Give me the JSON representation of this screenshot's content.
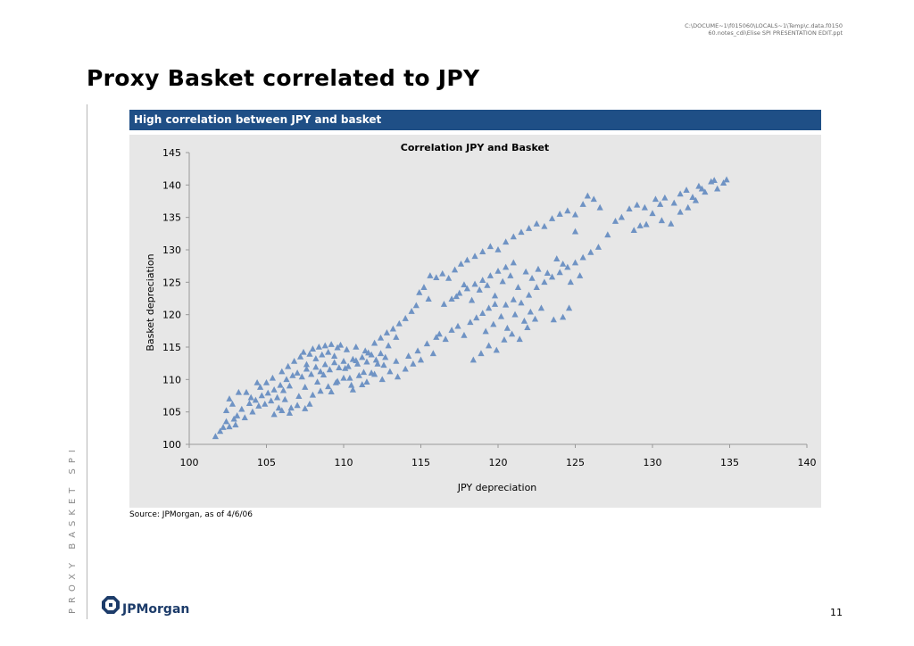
{
  "header": {
    "path_line1": "C:\\DOCUME~1\\f015060\\LOCALS~1\\Temp\\c.data.f0150",
    "path_line2": "60.notes_cdi\\Elise SPI PRESENTATION EDIT.ppt"
  },
  "page": {
    "title": "Proxy Basket correlated to JPY",
    "side_label": "PROXY BASKET SPI",
    "banner": "High correlation between JPY and basket",
    "source": "Source: JPMorgan, as of 4/6/06",
    "logo_text": "JPMorgan",
    "page_number": "11"
  },
  "colors": {
    "banner": "#1f4f86",
    "panel_bg": "#e7e7e7",
    "marker": "#6f93c4"
  },
  "chart_data": {
    "type": "scatter",
    "title": "Correlation JPY and Basket",
    "xlabel": "JPY depreciation",
    "ylabel": "Basket depreciation",
    "xlim": [
      100,
      140
    ],
    "ylim": [
      100,
      145
    ],
    "xticks": [
      100,
      105,
      110,
      115,
      120,
      125,
      130,
      135,
      140
    ],
    "yticks": [
      100,
      105,
      110,
      115,
      120,
      125,
      130,
      135,
      140,
      145
    ],
    "grid": false,
    "legend": "none",
    "marker": "triangle",
    "series": [
      {
        "points": [
          [
            101.7,
            101.2
          ],
          [
            102.0,
            102.0
          ],
          [
            102.2,
            102.6
          ],
          [
            102.4,
            103.5
          ],
          [
            102.6,
            102.7
          ],
          [
            102.9,
            103.9
          ],
          [
            103.1,
            104.4
          ],
          [
            103.0,
            103.0
          ],
          [
            103.4,
            105.4
          ],
          [
            103.6,
            104.1
          ],
          [
            102.4,
            105.2
          ],
          [
            102.8,
            106.2
          ],
          [
            102.6,
            107.0
          ],
          [
            103.2,
            108.0
          ],
          [
            103.7,
            108.0
          ],
          [
            103.9,
            106.3
          ],
          [
            104.1,
            105.0
          ],
          [
            104.3,
            106.8
          ],
          [
            104.5,
            105.9
          ],
          [
            104.7,
            107.5
          ],
          [
            104.9,
            106.2
          ],
          [
            105.1,
            107.9
          ],
          [
            105.3,
            106.7
          ],
          [
            105.5,
            108.4
          ],
          [
            105.7,
            107.2
          ],
          [
            105.9,
            109.1
          ],
          [
            106.1,
            108.3
          ],
          [
            106.3,
            110.0
          ],
          [
            106.5,
            109.0
          ],
          [
            106.7,
            110.6
          ],
          [
            104.6,
            108.8
          ],
          [
            105.0,
            109.5
          ],
          [
            105.4,
            110.2
          ],
          [
            106.0,
            111.2
          ],
          [
            106.4,
            112.0
          ],
          [
            106.8,
            112.8
          ],
          [
            107.2,
            113.5
          ],
          [
            107.4,
            114.2
          ],
          [
            107.6,
            112.3
          ],
          [
            107.8,
            113.9
          ],
          [
            108.0,
            114.7
          ],
          [
            108.2,
            113.2
          ],
          [
            108.4,
            115.0
          ],
          [
            108.6,
            113.8
          ],
          [
            108.8,
            115.2
          ],
          [
            109.0,
            114.2
          ],
          [
            109.2,
            115.4
          ],
          [
            109.4,
            113.6
          ],
          [
            109.6,
            114.9
          ],
          [
            109.8,
            115.3
          ],
          [
            107.0,
            111.0
          ],
          [
            107.3,
            110.4
          ],
          [
            107.6,
            111.6
          ],
          [
            107.9,
            110.8
          ],
          [
            108.2,
            111.9
          ],
          [
            108.5,
            111.2
          ],
          [
            108.8,
            112.3
          ],
          [
            109.1,
            111.5
          ],
          [
            109.4,
            112.6
          ],
          [
            109.7,
            111.8
          ],
          [
            110.0,
            112.8
          ],
          [
            110.3,
            112.0
          ],
          [
            110.6,
            113.1
          ],
          [
            110.9,
            112.4
          ],
          [
            111.2,
            113.4
          ],
          [
            111.5,
            112.7
          ],
          [
            111.8,
            113.8
          ],
          [
            112.1,
            113.0
          ],
          [
            112.4,
            114.0
          ],
          [
            112.7,
            113.4
          ],
          [
            105.5,
            104.6
          ],
          [
            106.0,
            105.2
          ],
          [
            106.5,
            104.8
          ],
          [
            107.0,
            106.0
          ],
          [
            107.5,
            105.5
          ],
          [
            108.0,
            107.6
          ],
          [
            108.5,
            108.2
          ],
          [
            109.0,
            108.9
          ],
          [
            109.5,
            109.5
          ],
          [
            110.0,
            110.2
          ],
          [
            110.5,
            109.1
          ],
          [
            111.0,
            110.6
          ],
          [
            111.5,
            109.6
          ],
          [
            112.0,
            110.8
          ],
          [
            112.5,
            110.0
          ],
          [
            113.0,
            111.2
          ],
          [
            113.5,
            110.4
          ],
          [
            114.0,
            111.6
          ],
          [
            114.5,
            112.4
          ],
          [
            115.0,
            113.0
          ],
          [
            110.2,
            114.6
          ],
          [
            110.8,
            115.0
          ],
          [
            111.4,
            114.4
          ],
          [
            112.0,
            115.6
          ],
          [
            112.4,
            116.4
          ],
          [
            112.8,
            117.2
          ],
          [
            113.2,
            117.8
          ],
          [
            113.6,
            118.6
          ],
          [
            114.0,
            119.4
          ],
          [
            114.4,
            120.5
          ],
          [
            114.7,
            121.4
          ],
          [
            114.9,
            123.4
          ],
          [
            115.2,
            124.2
          ],
          [
            115.5,
            122.4
          ],
          [
            115.6,
            126.0
          ],
          [
            116.0,
            125.7
          ],
          [
            116.4,
            126.3
          ],
          [
            116.8,
            125.6
          ],
          [
            117.2,
            126.9
          ],
          [
            117.6,
            127.8
          ],
          [
            116.2,
            117.0
          ],
          [
            116.6,
            116.2
          ],
          [
            117.0,
            117.6
          ],
          [
            117.4,
            118.2
          ],
          [
            117.8,
            116.8
          ],
          [
            118.2,
            118.8
          ],
          [
            118.6,
            119.5
          ],
          [
            119.0,
            120.2
          ],
          [
            119.4,
            121.0
          ],
          [
            119.8,
            121.6
          ],
          [
            116.5,
            121.6
          ],
          [
            117.0,
            122.4
          ],
          [
            117.5,
            123.3
          ],
          [
            118.0,
            124.0
          ],
          [
            118.5,
            124.7
          ],
          [
            119.0,
            125.3
          ],
          [
            119.5,
            126.0
          ],
          [
            120.0,
            126.7
          ],
          [
            120.5,
            127.3
          ],
          [
            121.0,
            128.0
          ],
          [
            117.3,
            122.8
          ],
          [
            117.8,
            124.6
          ],
          [
            118.3,
            122.2
          ],
          [
            118.8,
            123.8
          ],
          [
            119.3,
            124.5
          ],
          [
            119.8,
            122.9
          ],
          [
            120.3,
            125.1
          ],
          [
            120.8,
            126.0
          ],
          [
            121.3,
            124.2
          ],
          [
            121.8,
            126.6
          ],
          [
            118.0,
            128.4
          ],
          [
            118.5,
            129.0
          ],
          [
            119.0,
            129.7
          ],
          [
            119.5,
            130.5
          ],
          [
            120.0,
            130.0
          ],
          [
            120.5,
            131.2
          ],
          [
            121.0,
            132.0
          ],
          [
            121.5,
            132.7
          ],
          [
            122.0,
            133.3
          ],
          [
            122.5,
            134.0
          ],
          [
            123.0,
            133.6
          ],
          [
            123.5,
            134.8
          ],
          [
            124.0,
            135.5
          ],
          [
            124.5,
            136.0
          ],
          [
            125.0,
            135.4
          ],
          [
            125.5,
            137.0
          ],
          [
            125.8,
            138.3
          ],
          [
            126.2,
            137.8
          ],
          [
            126.6,
            136.5
          ],
          [
            125.0,
            132.8
          ],
          [
            120.5,
            121.5
          ],
          [
            121.0,
            122.3
          ],
          [
            121.5,
            121.8
          ],
          [
            122.0,
            123.0
          ],
          [
            122.5,
            124.2
          ],
          [
            123.0,
            125.0
          ],
          [
            123.5,
            125.8
          ],
          [
            124.0,
            126.5
          ],
          [
            124.5,
            127.3
          ],
          [
            125.0,
            128.0
          ],
          [
            125.5,
            128.8
          ],
          [
            126.0,
            129.6
          ],
          [
            126.5,
            130.4
          ],
          [
            125.3,
            126.0
          ],
          [
            124.7,
            125.0
          ],
          [
            124.2,
            127.8
          ],
          [
            123.8,
            128.6
          ],
          [
            123.2,
            126.4
          ],
          [
            122.6,
            127.0
          ],
          [
            122.2,
            125.6
          ],
          [
            118.4,
            113.0
          ],
          [
            118.9,
            114.0
          ],
          [
            119.4,
            115.2
          ],
          [
            119.9,
            114.5
          ],
          [
            120.4,
            116.1
          ],
          [
            120.9,
            117.0
          ],
          [
            121.4,
            116.2
          ],
          [
            121.9,
            118.0
          ],
          [
            122.4,
            119.3
          ],
          [
            122.8,
            121.0
          ],
          [
            123.6,
            119.2
          ],
          [
            124.2,
            119.6
          ],
          [
            124.6,
            121.0
          ],
          [
            119.2,
            117.4
          ],
          [
            119.7,
            118.5
          ],
          [
            120.2,
            119.7
          ],
          [
            120.6,
            117.9
          ],
          [
            121.1,
            120.0
          ],
          [
            121.7,
            119.0
          ],
          [
            122.1,
            120.4
          ],
          [
            127.1,
            132.3
          ],
          [
            127.6,
            134.4
          ],
          [
            128.0,
            135.0
          ],
          [
            128.5,
            136.3
          ],
          [
            129.0,
            136.9
          ],
          [
            129.5,
            136.5
          ],
          [
            130.0,
            135.6
          ],
          [
            130.5,
            137.0
          ],
          [
            128.8,
            133.0
          ],
          [
            129.2,
            133.7
          ],
          [
            130.2,
            137.8
          ],
          [
            130.8,
            138.0
          ],
          [
            131.4,
            137.2
          ],
          [
            131.8,
            138.6
          ],
          [
            132.2,
            139.2
          ],
          [
            132.6,
            138.1
          ],
          [
            133.0,
            139.8
          ],
          [
            133.4,
            138.9
          ],
          [
            133.8,
            140.5
          ],
          [
            134.2,
            139.4
          ],
          [
            134.6,
            140.3
          ],
          [
            134.8,
            140.8
          ],
          [
            134.0,
            140.7
          ],
          [
            133.2,
            139.4
          ],
          [
            132.3,
            136.5
          ],
          [
            132.8,
            137.6
          ],
          [
            131.2,
            134.0
          ],
          [
            131.8,
            135.8
          ],
          [
            130.6,
            134.5
          ],
          [
            129.6,
            133.9
          ],
          [
            110.6,
            108.4
          ],
          [
            111.2,
            109.2
          ],
          [
            111.8,
            111.0
          ],
          [
            112.6,
            112.2
          ],
          [
            113.4,
            112.8
          ],
          [
            114.2,
            113.6
          ],
          [
            114.8,
            114.4
          ],
          [
            115.4,
            115.5
          ],
          [
            115.8,
            114.0
          ],
          [
            116.0,
            116.5
          ],
          [
            104.0,
            107.2
          ],
          [
            104.4,
            109.5
          ],
          [
            105.8,
            105.6
          ],
          [
            106.2,
            106.9
          ],
          [
            106.6,
            105.6
          ],
          [
            107.1,
            107.4
          ],
          [
            107.5,
            108.8
          ],
          [
            107.8,
            106.2
          ],
          [
            108.3,
            109.6
          ],
          [
            108.7,
            110.7
          ],
          [
            109.2,
            108.1
          ],
          [
            109.6,
            109.7
          ],
          [
            110.1,
            111.7
          ],
          [
            110.4,
            110.2
          ],
          [
            110.8,
            112.9
          ],
          [
            111.3,
            111.1
          ],
          [
            111.6,
            114.1
          ],
          [
            112.2,
            112.4
          ],
          [
            112.9,
            115.2
          ],
          [
            113.4,
            116.5
          ]
        ]
      }
    ]
  }
}
